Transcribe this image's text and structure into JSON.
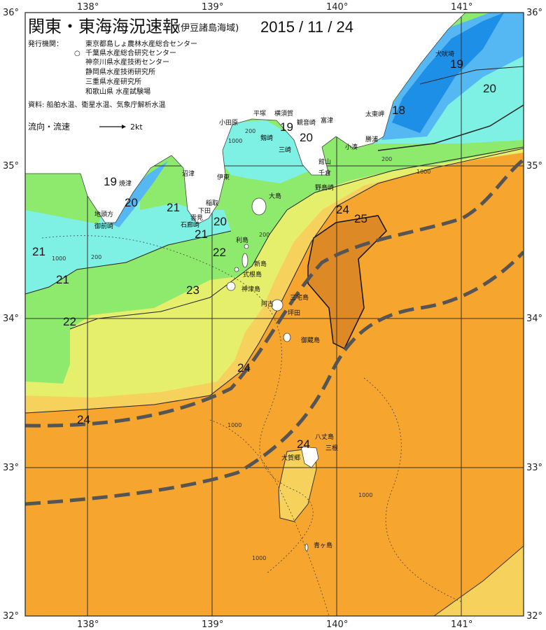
{
  "header": {
    "title": "関東・東海海況速報",
    "subtitle": "(伊豆諸島海域)",
    "date": "2015 / 11 / 24",
    "issuer_label": "発行機関：",
    "issuers": [
      "東京都島しょ農林水産総合センター",
      "千葉県水産総合研究センター",
      "神奈川県水産技術センター",
      "静岡県水産技術研究所",
      "三重県水産研究所",
      "和歌山県 水産試験場"
    ],
    "issuer_marker": "○",
    "source": "資料: 船舶水温、衛星水温、気象庁解析水温",
    "flow_label": "流向・流速",
    "flow_scale": "2kt"
  },
  "axes": {
    "lon_labels": [
      "138°",
      "139°",
      "140°",
      "141°"
    ],
    "lat_labels": [
      "36°",
      "35°",
      "34°",
      "33°",
      "32°"
    ]
  },
  "colors": {
    "land": "#ffffff",
    "t18": "#1e8fe6",
    "t19": "#55b8f2",
    "t20": "#7ef0e4",
    "t21": "#8eea6c",
    "t22": "#e6ef6c",
    "t23": "#f6d25c",
    "t24": "#f6a52e",
    "t25": "#dd8a26",
    "kuroshio_axis": "#555555"
  },
  "temperature_labels": [
    "19",
    "20",
    "18",
    "19",
    "20",
    "20",
    "21",
    "21",
    "20",
    "21",
    "22",
    "21",
    "23",
    "22",
    "24",
    "25",
    "24",
    "24",
    "24"
  ],
  "depth_labels": [
    "200",
    "1000",
    "200",
    "1000",
    "200",
    "1000",
    "200",
    "1000",
    "1000",
    "1000"
  ],
  "places": [
    "犬吠埼",
    "太東岬",
    "勝浦",
    "小湊",
    "富津",
    "館山",
    "千倉",
    "野島崎",
    "横須賀",
    "観音崎",
    "剱崎",
    "三崎",
    "平塚",
    "小田原",
    "伊東",
    "大島",
    "稲取",
    "下田",
    "石廊崎",
    "雲見",
    "沼津",
    "焼津",
    "地頭方",
    "御前崎",
    "利島",
    "新島",
    "式根島",
    "神津島",
    "三宅島",
    "阿古",
    "坪田",
    "御蔵島",
    "八丈島",
    "三根",
    "大賀郷",
    "青ヶ島"
  ]
}
